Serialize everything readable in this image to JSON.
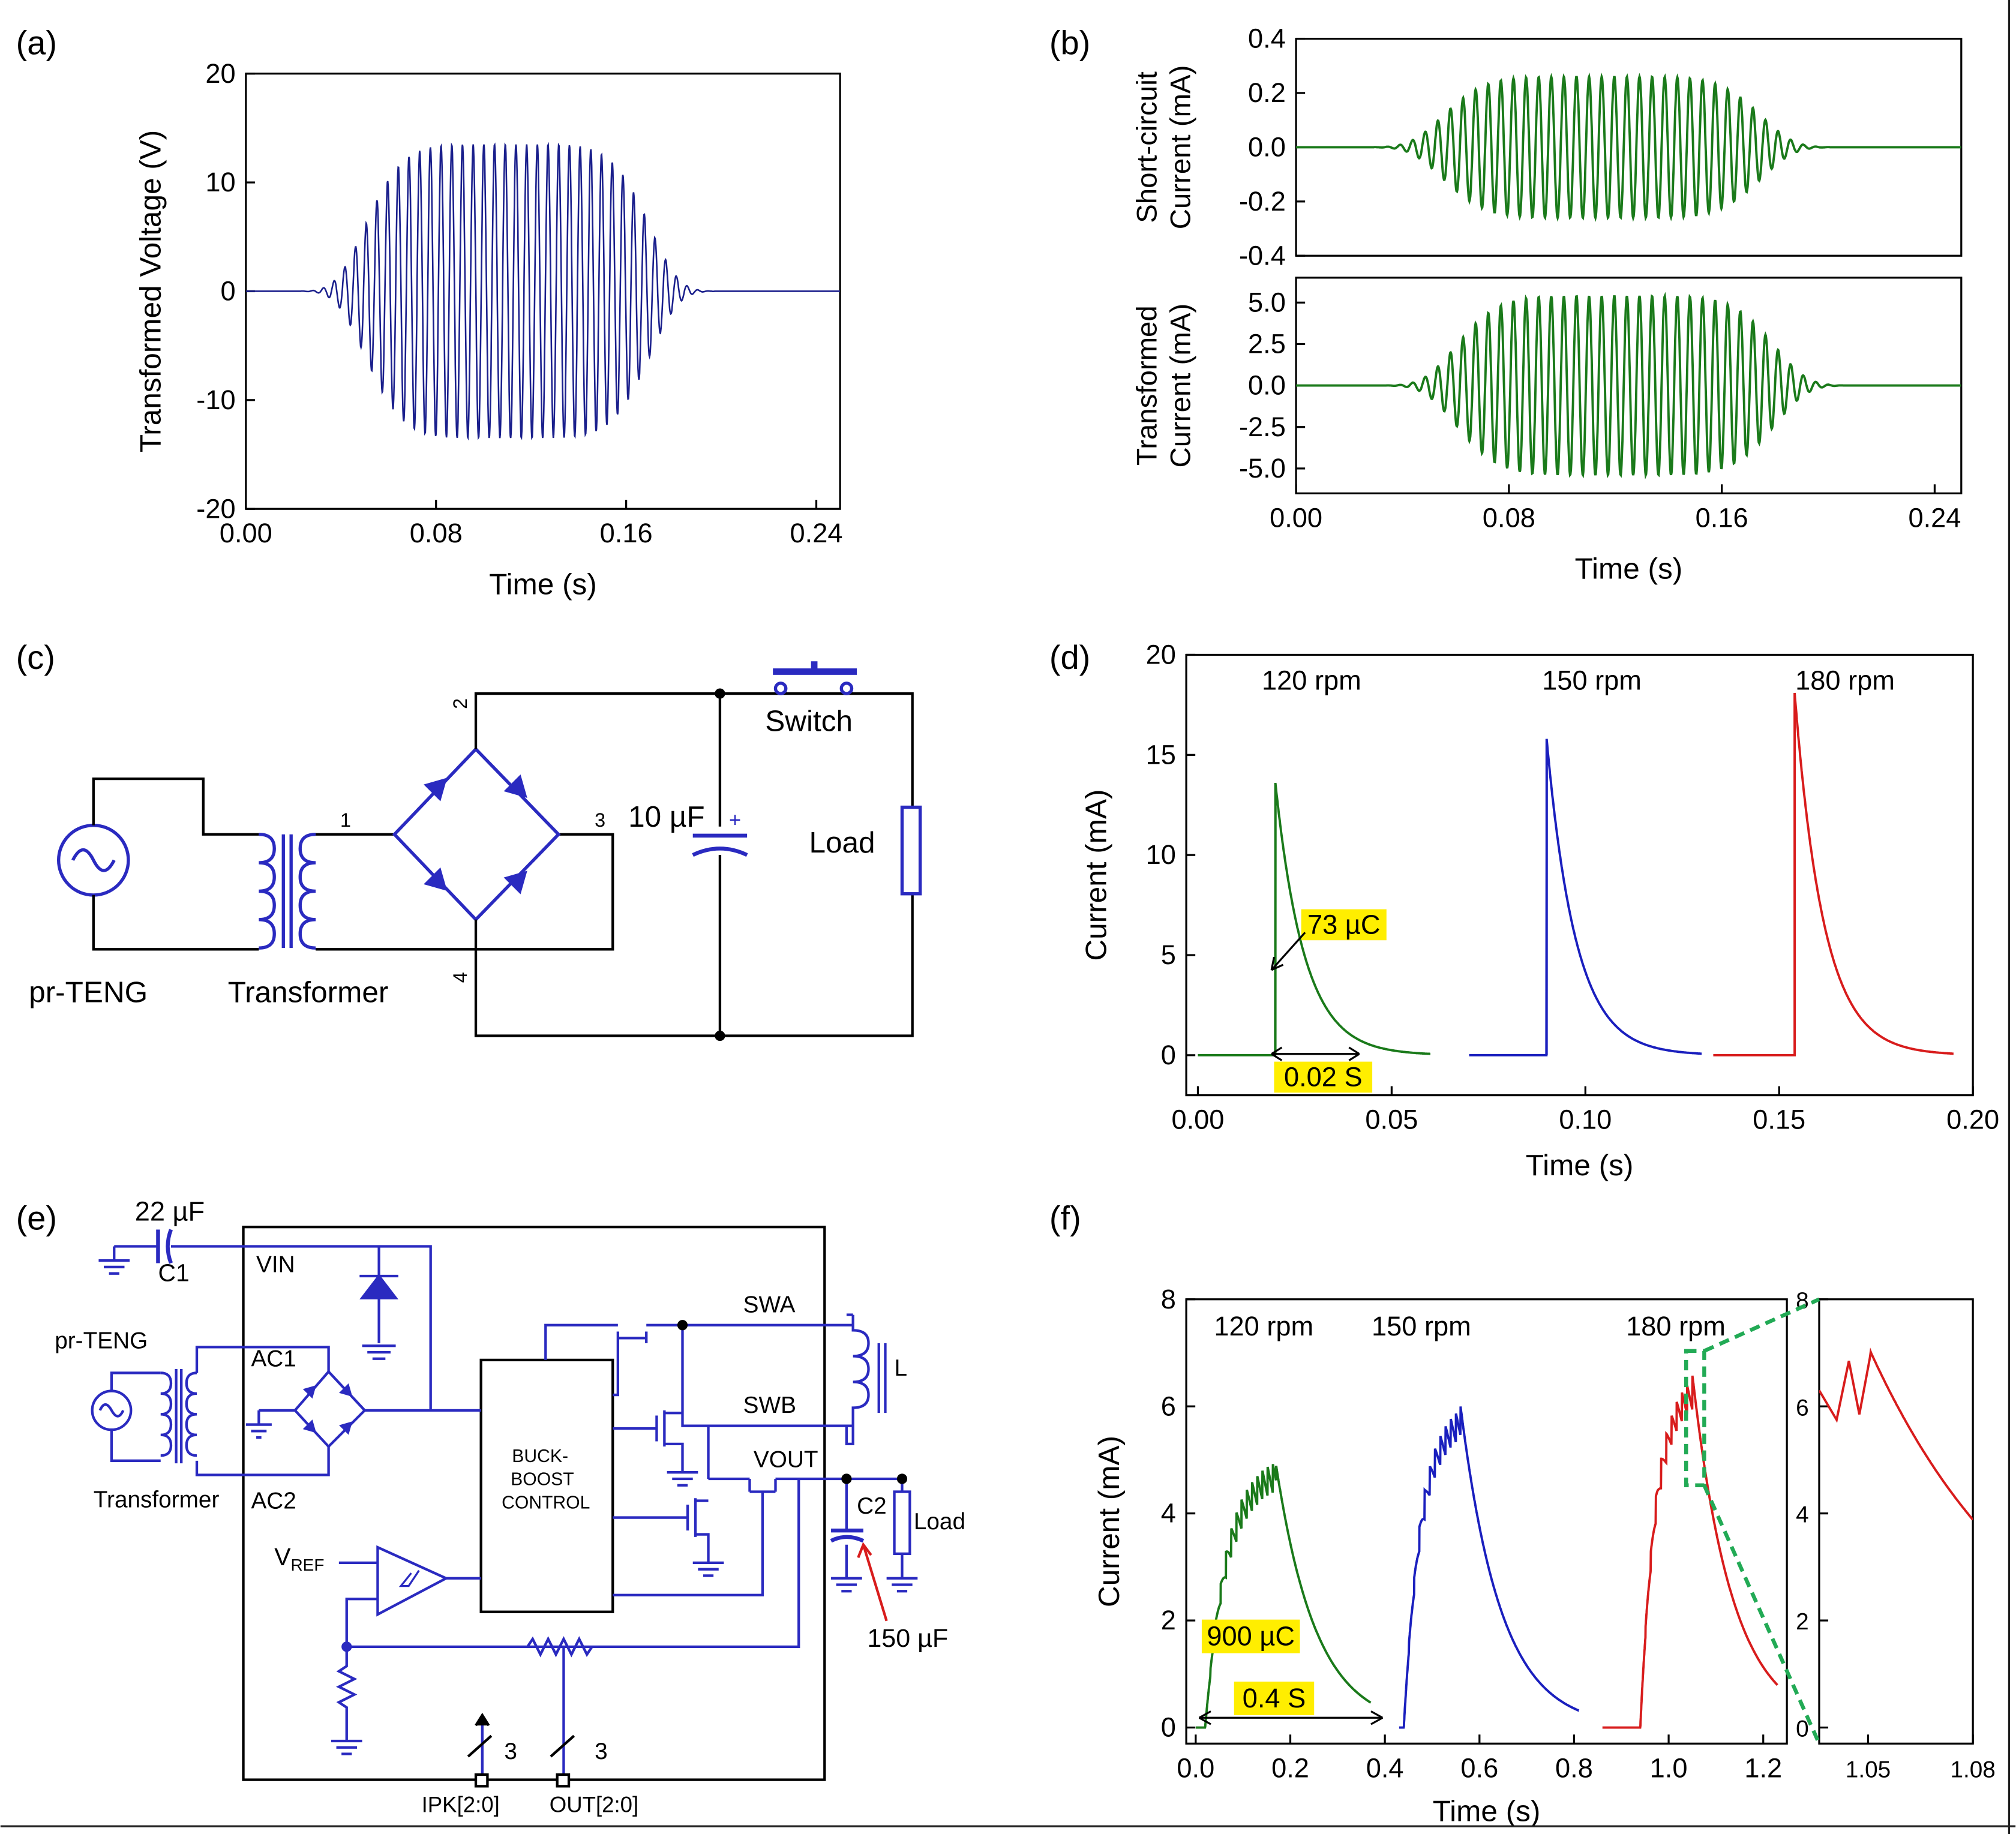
{
  "panels": {
    "a": {
      "label": "(a)"
    },
    "b": {
      "label": "(b)"
    },
    "c": {
      "label": "(c)"
    },
    "d": {
      "label": "(d)"
    },
    "e": {
      "label": "(e)"
    },
    "f": {
      "label": "(f)"
    }
  },
  "circuit_c": {
    "source": "pr-TENG",
    "transformer": "Transformer",
    "capacitor": "10 µF",
    "switch": "Switch",
    "load": "Load",
    "nodes": [
      "1",
      "2",
      "3",
      "4"
    ],
    "plus": "+"
  },
  "circuit_e": {
    "c1_value": "22 µF",
    "c1": "C1",
    "vin": "VIN",
    "source": "pr-TENG",
    "transformer": "Transformer",
    "ac1": "AC1",
    "ac2": "AC2",
    "swa": "SWA",
    "swb": "SWB",
    "inductor": "L",
    "vout": "VOUT",
    "control_line1": "BUCK-",
    "control_line2": "BOOST",
    "control_line3": "CONTROL",
    "vref": "V",
    "vref_sub": "REF",
    "c2": "C2",
    "c2_value": "150 µF",
    "load": "Load",
    "ipk": "IPK[2:0]",
    "out": "OUT[2:0]",
    "bus_width": "3"
  },
  "chart_data": [
    {
      "id": "a",
      "type": "line",
      "xlabel": "Time (s)",
      "ylabel": "Transformed Voltage (V)",
      "xlim": [
        0,
        0.25
      ],
      "ylim": [
        -20,
        20
      ],
      "xticks": [
        "0.00",
        "0.08",
        "0.16",
        "0.24"
      ],
      "yticks": [
        "-20",
        "-10",
        "0",
        "10",
        "20"
      ],
      "series": [
        {
          "name": "voltage",
          "color": "#1a1f8c",
          "waveform": "damped_burst",
          "amplitude": 13.5,
          "center": 0.11,
          "cycles": 40
        }
      ]
    },
    {
      "id": "b_top",
      "type": "line",
      "xlabel": "",
      "ylabel": "Short-circuit Current (mA)",
      "ylabel_lines": [
        "Short-circuit",
        "Current (mA)"
      ],
      "xlim": [
        0,
        0.25
      ],
      "ylim": [
        -0.4,
        0.4
      ],
      "xticks": [],
      "yticks": [
        "-0.4",
        "-0.2",
        "0.0",
        "0.2",
        "0.4"
      ],
      "series": [
        {
          "name": "short-circuit current",
          "color": "#1a7a1a",
          "waveform": "damped_burst",
          "amplitude": 0.26,
          "center": 0.115,
          "cycles": 38
        }
      ]
    },
    {
      "id": "b_bottom",
      "type": "line",
      "xlabel": "Time (s)",
      "ylabel": "Transformed Current (mA)",
      "ylabel_lines": [
        "Transformed",
        "Current (mA)"
      ],
      "xlim": [
        0,
        0.25
      ],
      "ylim": [
        -6.5,
        6.5
      ],
      "xticks": [
        "0.00",
        "0.08",
        "0.16",
        "0.24"
      ],
      "yticks": [
        "-5.0",
        "-2.5",
        "0.0",
        "2.5",
        "5.0"
      ],
      "series": [
        {
          "name": "transformed current",
          "color": "#1a7a1a",
          "waveform": "damped_burst",
          "amplitude": 5.4,
          "center": 0.12,
          "cycles": 38
        }
      ]
    },
    {
      "id": "d",
      "type": "line",
      "xlabel": "Time (s)",
      "ylabel": "Current (mA)",
      "xlim": [
        -0.003,
        0.2
      ],
      "ylim": [
        -2,
        20
      ],
      "xticks": [
        "0.00",
        "0.05",
        "0.10",
        "0.15",
        "0.20"
      ],
      "yticks": [
        "0",
        "5",
        "10",
        "15",
        "20"
      ],
      "series": [
        {
          "name": "120 rpm",
          "color": "#1a7a1a",
          "x_start": 0.0,
          "x_spike": 0.02,
          "x_end": 0.06,
          "peak": 13.6
        },
        {
          "name": "150 rpm",
          "color": "#1a1fbe",
          "x_start": 0.07,
          "x_spike": 0.09,
          "x_end": 0.13,
          "peak": 15.8
        },
        {
          "name": "180 rpm",
          "color": "#d81c1c",
          "x_start": 0.133,
          "x_spike": 0.154,
          "x_end": 0.195,
          "peak": 18.1
        }
      ],
      "annotations": {
        "charge": "73 µC",
        "duration": "0.02 S"
      }
    },
    {
      "id": "f_main",
      "type": "line",
      "xlabel": "Time (s)",
      "ylabel": "Current (mA)",
      "xlim": [
        -0.02,
        1.25
      ],
      "ylim": [
        -0.3,
        8
      ],
      "xticks": [
        "0.0",
        "0.2",
        "0.4",
        "0.6",
        "0.8",
        "1.0",
        "1.2"
      ],
      "yticks": [
        "0",
        "2",
        "4",
        "6",
        "8"
      ],
      "series": [
        {
          "name": "120 rpm",
          "color": "#1a7a1a",
          "x_start": 0.0,
          "x_rise": 0.02,
          "x_peak": 0.17,
          "peak": 4.9,
          "x_end": 0.37
        },
        {
          "name": "150 rpm",
          "color": "#1a1fbe",
          "x_start": 0.43,
          "x_rise": 0.44,
          "x_peak": 0.56,
          "peak": 6.0,
          "x_end": 0.81
        },
        {
          "name": "180 rpm",
          "color": "#d81c1c",
          "x_start": 0.86,
          "x_rise": 0.94,
          "x_peak": 1.05,
          "peak": 6.6,
          "x_end": 1.23
        }
      ],
      "annotations": {
        "charge": "900 µC",
        "duration": "0.4 S"
      }
    },
    {
      "id": "f_zoom",
      "type": "line",
      "xlabel": "",
      "ylabel": "",
      "xlim": [
        1.036,
        1.08
      ],
      "ylim": [
        -0.3,
        8
      ],
      "xticks": [
        "1.05",
        "1.08"
      ],
      "yticks": [
        "0",
        "2",
        "4",
        "6",
        "8"
      ],
      "series": [
        {
          "name": "180 rpm zoom",
          "color": "#d81c1c"
        }
      ]
    }
  ]
}
